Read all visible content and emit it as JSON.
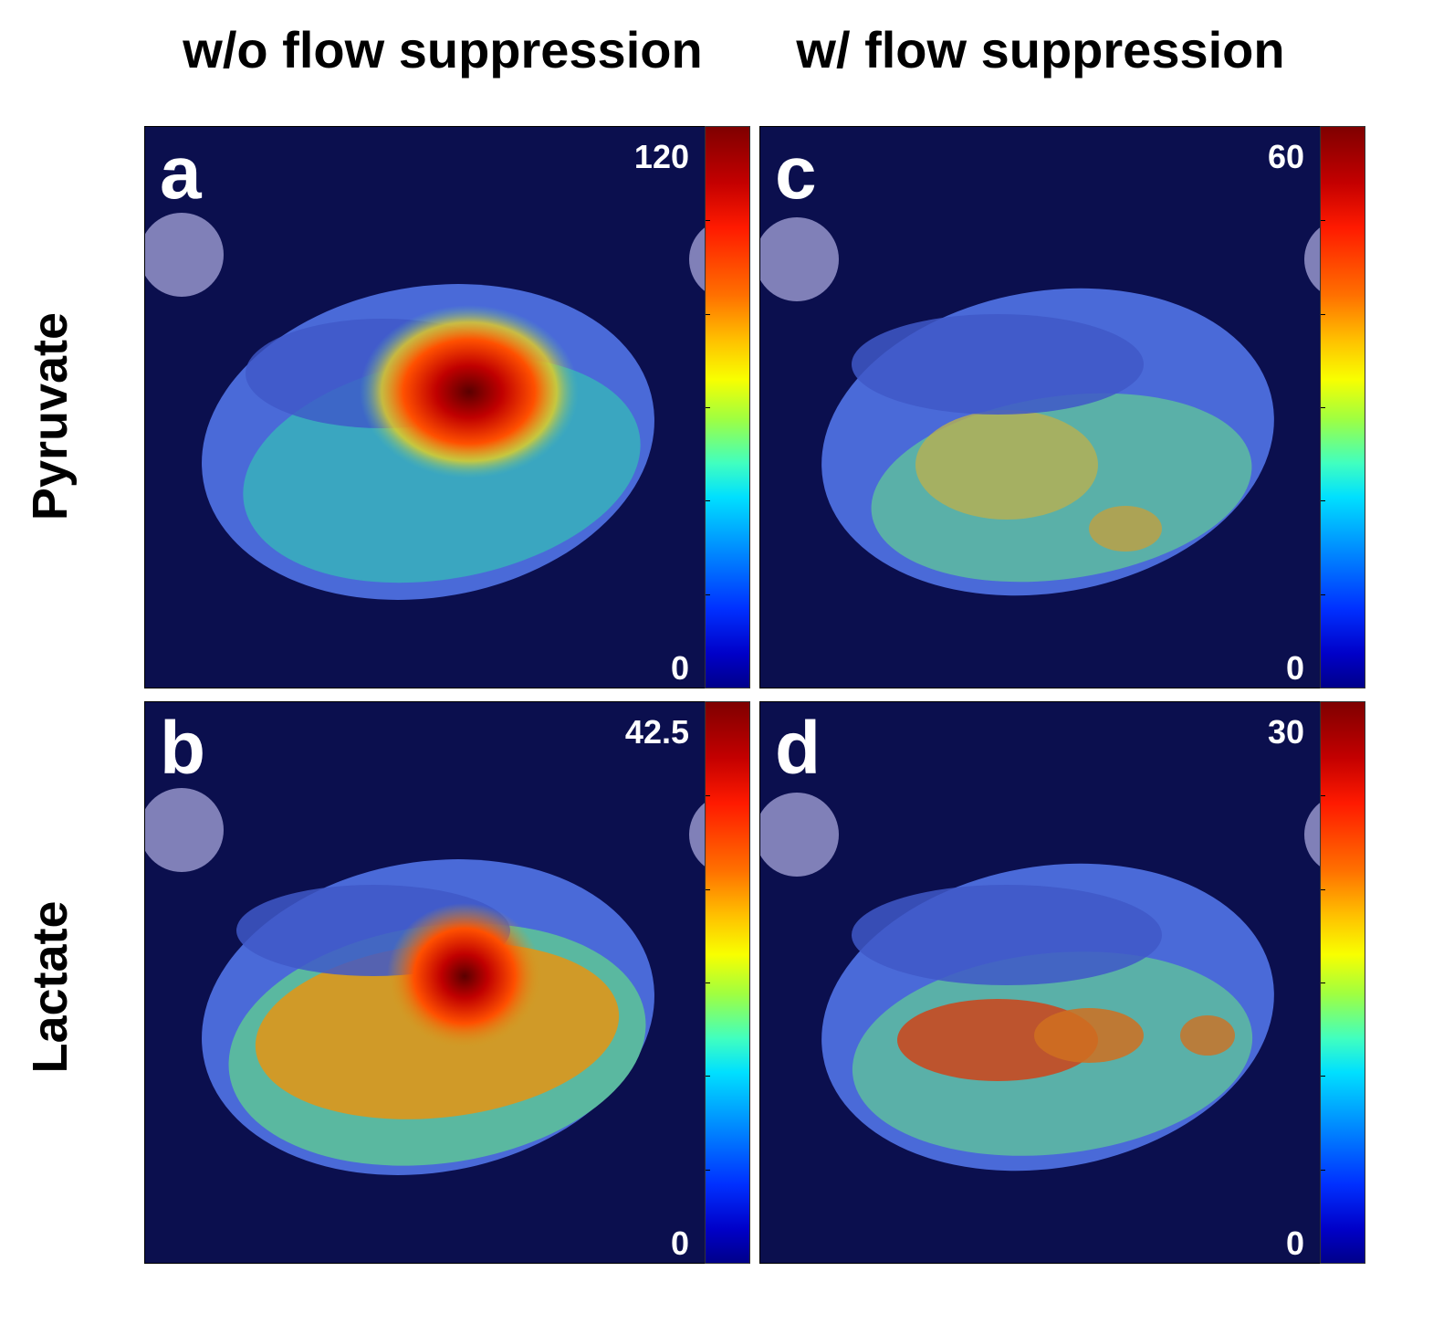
{
  "columns": [
    "w/o flow suppression",
    "w/ flow suppression"
  ],
  "rows": [
    "Pyruvate",
    "Lactate"
  ],
  "panels": {
    "a": {
      "letter": "a",
      "max": "120",
      "min": "0"
    },
    "b": {
      "letter": "b",
      "max": "42.5",
      "min": "0"
    },
    "c": {
      "letter": "c",
      "max": "60",
      "min": "0"
    },
    "d": {
      "letter": "d",
      "max": "30",
      "min": "0"
    }
  },
  "colors": {
    "background": "#0b0f4e",
    "colormap": "jet"
  }
}
